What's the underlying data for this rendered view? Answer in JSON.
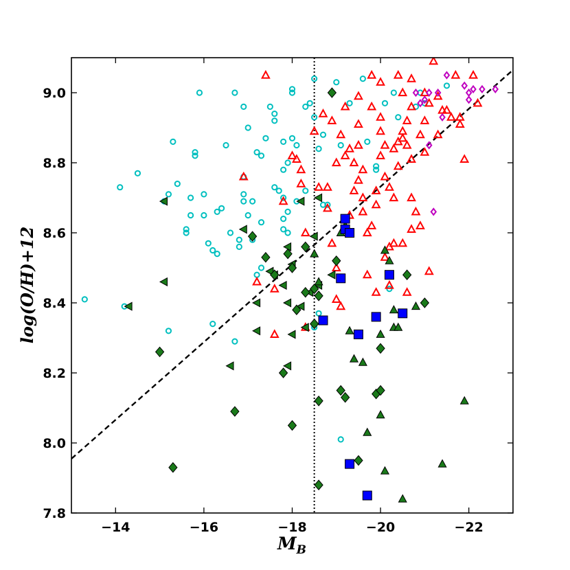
{
  "chart_data": {
    "type": "scatter",
    "title": "",
    "xlabel_main": "M",
    "xlabel_sub": "B",
    "ylabel": "log(O/H)+12",
    "xlim": [
      -13,
      -23
    ],
    "ylim": [
      7.8,
      9.1
    ],
    "x_ticks": [
      -14,
      -16,
      -18,
      -20,
      -22
    ],
    "x_tick_labels": [
      "−14",
      "−16",
      "−18",
      "−20",
      "−22"
    ],
    "y_ticks": [
      7.8,
      8.0,
      8.2,
      8.4,
      8.6,
      8.8,
      9.0
    ],
    "y_tick_labels": [
      "7.8",
      "8.0",
      "8.2",
      "8.4",
      "8.6",
      "8.8",
      "9.0"
    ],
    "grid": false,
    "reference_lines": [
      {
        "style": "dashed",
        "points": [
          [
            -13,
            7.955
          ],
          [
            -23,
            9.065
          ]
        ]
      },
      {
        "style": "dotted",
        "vertical_x": -18.5
      }
    ],
    "series": [
      {
        "marker": "circle-open",
        "color": "#00bfbf",
        "points": [
          [
            -13.3,
            8.41
          ],
          [
            -14.1,
            8.73
          ],
          [
            -14.2,
            8.39
          ],
          [
            -14.5,
            8.77
          ],
          [
            -15.1,
            8.69
          ],
          [
            -15.2,
            8.71
          ],
          [
            -15.3,
            8.86
          ],
          [
            -15.2,
            8.32
          ],
          [
            -15.4,
            8.74
          ],
          [
            -15.6,
            8.61
          ],
          [
            -15.6,
            8.6
          ],
          [
            -15.7,
            8.7
          ],
          [
            -15.7,
            8.65
          ],
          [
            -15.8,
            8.83
          ],
          [
            -15.8,
            8.82
          ],
          [
            -15.9,
            9.0
          ],
          [
            -16.0,
            8.71
          ],
          [
            -16.0,
            8.65
          ],
          [
            -16.1,
            8.57
          ],
          [
            -16.2,
            8.55
          ],
          [
            -16.3,
            8.54
          ],
          [
            -16.3,
            8.66
          ],
          [
            -16.4,
            8.67
          ],
          [
            -16.2,
            8.34
          ],
          [
            -16.5,
            8.85
          ],
          [
            -16.7,
            9.0
          ],
          [
            -16.6,
            8.6
          ],
          [
            -16.8,
            8.56
          ],
          [
            -16.8,
            8.58
          ],
          [
            -16.7,
            8.29
          ],
          [
            -16.9,
            8.71
          ],
          [
            -16.9,
            8.69
          ],
          [
            -16.9,
            8.96
          ],
          [
            -17.0,
            8.9
          ],
          [
            -16.9,
            8.76
          ],
          [
            -17.0,
            8.65
          ],
          [
            -17.1,
            8.58
          ],
          [
            -17.1,
            8.69
          ],
          [
            -17.2,
            8.83
          ],
          [
            -17.3,
            8.82
          ],
          [
            -17.3,
            8.5
          ],
          [
            -17.2,
            8.48
          ],
          [
            -17.3,
            8.63
          ],
          [
            -17.4,
            8.87
          ],
          [
            -17.5,
            8.96
          ],
          [
            -17.6,
            8.94
          ],
          [
            -17.6,
            8.92
          ],
          [
            -17.6,
            8.73
          ],
          [
            -17.7,
            8.72
          ],
          [
            -17.8,
            8.78
          ],
          [
            -17.8,
            8.86
          ],
          [
            -17.8,
            8.7
          ],
          [
            -17.8,
            8.64
          ],
          [
            -17.8,
            8.61
          ],
          [
            -17.9,
            8.6
          ],
          [
            -17.9,
            8.66
          ],
          [
            -17.9,
            8.8
          ],
          [
            -18.0,
            9.01
          ],
          [
            -18.0,
            9.0
          ],
          [
            -18.0,
            8.87
          ],
          [
            -18.1,
            8.85
          ],
          [
            -18.1,
            8.69
          ],
          [
            -18.3,
            8.72
          ],
          [
            -18.3,
            8.96
          ],
          [
            -18.4,
            8.97
          ],
          [
            -18.5,
            9.04
          ],
          [
            -18.5,
            8.93
          ],
          [
            -18.6,
            8.84
          ],
          [
            -18.7,
            8.88
          ],
          [
            -18.8,
            8.68
          ],
          [
            -18.6,
            8.37
          ],
          [
            -18.7,
            8.68
          ],
          [
            -19.0,
            9.03
          ],
          [
            -19.1,
            8.85
          ],
          [
            -19.3,
            8.97
          ],
          [
            -19.6,
            9.04
          ],
          [
            -19.7,
            8.86
          ],
          [
            -19.9,
            8.78
          ],
          [
            -19.9,
            8.79
          ],
          [
            -20.1,
            8.97
          ],
          [
            -20.2,
            8.44
          ],
          [
            -20.3,
            9.0
          ],
          [
            -20.8,
            8.96
          ],
          [
            -20.4,
            8.93
          ],
          [
            -21.0,
            8.97
          ],
          [
            -20.9,
            9.0
          ],
          [
            -21.5,
            9.02
          ],
          [
            -19.1,
            8.01
          ],
          [
            -18.5,
            8.33
          ]
        ]
      },
      {
        "marker": "triangle-up-open",
        "color": "#ff0000",
        "points": [
          [
            -17.4,
            9.05
          ],
          [
            -16.9,
            8.76
          ],
          [
            -17.2,
            8.46
          ],
          [
            -17.6,
            8.31
          ],
          [
            -17.6,
            8.44
          ],
          [
            -17.8,
            8.69
          ],
          [
            -18.0,
            8.82
          ],
          [
            -18.1,
            8.81
          ],
          [
            -18.2,
            8.78
          ],
          [
            -18.2,
            8.74
          ],
          [
            -18.3,
            8.6
          ],
          [
            -18.3,
            8.33
          ],
          [
            -18.5,
            8.89
          ],
          [
            -18.6,
            8.73
          ],
          [
            -18.7,
            8.94
          ],
          [
            -18.8,
            8.73
          ],
          [
            -18.8,
            8.67
          ],
          [
            -18.9,
            8.57
          ],
          [
            -19.0,
            8.5
          ],
          [
            -19.0,
            8.41
          ],
          [
            -19.1,
            8.39
          ],
          [
            -19.1,
            8.88
          ],
          [
            -19.2,
            8.82
          ],
          [
            -19.3,
            8.65
          ],
          [
            -19.4,
            8.72
          ],
          [
            -19.4,
            8.8
          ],
          [
            -19.5,
            8.75
          ],
          [
            -19.5,
            8.85
          ],
          [
            -19.5,
            8.91
          ],
          [
            -19.6,
            8.7
          ],
          [
            -19.6,
            8.66
          ],
          [
            -19.7,
            8.6
          ],
          [
            -19.8,
            8.62
          ],
          [
            -19.9,
            8.72
          ],
          [
            -19.9,
            8.68
          ],
          [
            -20.0,
            8.82
          ],
          [
            -20.0,
            8.89
          ],
          [
            -20.0,
            8.93
          ],
          [
            -20.1,
            8.85
          ],
          [
            -20.1,
            8.76
          ],
          [
            -20.2,
            8.73
          ],
          [
            -20.2,
            8.56
          ],
          [
            -20.2,
            8.45
          ],
          [
            -20.3,
            8.7
          ],
          [
            -20.3,
            8.84
          ],
          [
            -20.4,
            8.86
          ],
          [
            -20.4,
            8.79
          ],
          [
            -20.5,
            8.87
          ],
          [
            -20.5,
            8.89
          ],
          [
            -20.6,
            8.92
          ],
          [
            -20.6,
            8.85
          ],
          [
            -20.7,
            8.81
          ],
          [
            -20.7,
            8.7
          ],
          [
            -20.8,
            8.66
          ],
          [
            -20.9,
            8.62
          ],
          [
            -21.0,
            8.83
          ],
          [
            -21.0,
            8.92
          ],
          [
            -21.1,
            8.97
          ],
          [
            -21.2,
            9.09
          ],
          [
            -21.3,
            8.99
          ],
          [
            -21.4,
            8.95
          ],
          [
            -21.6,
            8.93
          ],
          [
            -21.7,
            9.05
          ],
          [
            -21.8,
            8.91
          ],
          [
            -21.9,
            8.81
          ],
          [
            -22.1,
            9.05
          ],
          [
            -22.2,
            8.97
          ],
          [
            -19.8,
            9.05
          ],
          [
            -20.0,
            9.03
          ],
          [
            -20.4,
            9.05
          ],
          [
            -20.5,
            9.0
          ],
          [
            -20.7,
            8.96
          ],
          [
            -20.9,
            8.88
          ],
          [
            -20.3,
            8.57
          ],
          [
            -20.5,
            8.57
          ],
          [
            -20.7,
            8.61
          ],
          [
            -20.1,
            8.53
          ],
          [
            -19.7,
            8.48
          ],
          [
            -19.9,
            8.43
          ],
          [
            -20.6,
            8.43
          ],
          [
            -21.1,
            8.49
          ],
          [
            -19.8,
            8.96
          ],
          [
            -19.5,
            8.99
          ],
          [
            -19.2,
            8.96
          ],
          [
            -19.0,
            8.8
          ],
          [
            -18.9,
            8.92
          ],
          [
            -19.3,
            8.84
          ],
          [
            -19.6,
            8.78
          ],
          [
            -20.7,
            9.04
          ],
          [
            -21.0,
            9.0
          ],
          [
            -21.5,
            8.95
          ],
          [
            -21.8,
            8.93
          ],
          [
            -21.3,
            8.88
          ]
        ]
      },
      {
        "marker": "diamond-open",
        "color": "#bf00bf",
        "points": [
          [
            -20.8,
            9.0
          ],
          [
            -21.0,
            8.98
          ],
          [
            -21.1,
            9.0
          ],
          [
            -21.4,
            8.93
          ],
          [
            -21.5,
            9.05
          ],
          [
            -21.9,
            9.02
          ],
          [
            -22.0,
            9.0
          ],
          [
            -22.1,
            9.01
          ],
          [
            -22.3,
            9.01
          ],
          [
            -22.6,
            9.01
          ],
          [
            -21.2,
            8.66
          ],
          [
            -21.3,
            9.0
          ],
          [
            -22.0,
            8.98
          ],
          [
            -21.1,
            8.85
          ],
          [
            -20.9,
            8.97
          ]
        ]
      },
      {
        "marker": "triangle-left",
        "color": "#1a7a1a",
        "points": [
          [
            -14.3,
            8.39
          ],
          [
            -15.1,
            8.46
          ],
          [
            -15.1,
            8.69
          ],
          [
            -16.6,
            8.22
          ],
          [
            -16.9,
            8.61
          ],
          [
            -17.2,
            8.4
          ],
          [
            -17.2,
            8.32
          ],
          [
            -17.5,
            8.49
          ],
          [
            -17.6,
            8.48
          ],
          [
            -17.8,
            8.45
          ],
          [
            -17.9,
            8.56
          ],
          [
            -17.9,
            8.4
          ],
          [
            -18.0,
            8.31
          ],
          [
            -18.0,
            8.51
          ],
          [
            -17.9,
            8.22
          ],
          [
            -18.2,
            8.39
          ],
          [
            -18.3,
            8.33
          ],
          [
            -18.4,
            8.43
          ],
          [
            -18.5,
            8.59
          ],
          [
            -18.2,
            8.69
          ],
          [
            -18.6,
            8.45
          ],
          [
            -18.7,
            8.35
          ],
          [
            -18.6,
            8.7
          ],
          [
            -18.9,
            8.48
          ]
        ]
      },
      {
        "marker": "triangle-up",
        "color": "#1a7a1a",
        "points": [
          [
            -18.5,
            8.54
          ],
          [
            -18.6,
            8.46
          ],
          [
            -19.1,
            8.6
          ],
          [
            -19.2,
            8.62
          ],
          [
            -19.4,
            8.24
          ],
          [
            -19.6,
            8.23
          ],
          [
            -19.7,
            8.03
          ],
          [
            -20.0,
            8.08
          ],
          [
            -20.0,
            8.31
          ],
          [
            -20.1,
            7.92
          ],
          [
            -20.1,
            8.55
          ],
          [
            -20.2,
            8.52
          ],
          [
            -20.3,
            8.33
          ],
          [
            -20.3,
            8.38
          ],
          [
            -20.4,
            8.33
          ],
          [
            -20.5,
            8.37
          ],
          [
            -20.5,
            7.84
          ],
          [
            -21.4,
            7.94
          ],
          [
            -21.9,
            8.12
          ],
          [
            -19.3,
            8.32
          ],
          [
            -20.8,
            8.39
          ]
        ]
      },
      {
        "marker": "diamond",
        "color": "#1a7a1a",
        "points": [
          [
            -15.0,
            8.26
          ],
          [
            -15.3,
            7.93
          ],
          [
            -16.7,
            8.09
          ],
          [
            -17.1,
            8.59
          ],
          [
            -17.4,
            8.53
          ],
          [
            -17.6,
            8.48
          ],
          [
            -17.8,
            8.2
          ],
          [
            -17.9,
            8.54
          ],
          [
            -18.0,
            8.5
          ],
          [
            -18.0,
            8.05
          ],
          [
            -18.1,
            8.38
          ],
          [
            -18.3,
            8.43
          ],
          [
            -18.3,
            8.56
          ],
          [
            -18.5,
            8.44
          ],
          [
            -18.5,
            8.34
          ],
          [
            -18.6,
            8.42
          ],
          [
            -18.6,
            7.88
          ],
          [
            -18.6,
            8.12
          ],
          [
            -18.9,
            9.0
          ],
          [
            -19.0,
            8.52
          ],
          [
            -19.1,
            8.15
          ],
          [
            -19.2,
            8.13
          ],
          [
            -19.5,
            7.95
          ],
          [
            -19.9,
            8.14
          ],
          [
            -20.0,
            8.15
          ],
          [
            -20.0,
            8.27
          ],
          [
            -20.6,
            8.48
          ],
          [
            -21.0,
            8.4
          ]
        ]
      },
      {
        "marker": "square",
        "color": "#0000ff",
        "points": [
          [
            -18.7,
            8.35
          ],
          [
            -19.1,
            8.47
          ],
          [
            -19.2,
            8.64
          ],
          [
            -19.2,
            8.61
          ],
          [
            -19.3,
            8.6
          ],
          [
            -19.3,
            7.94
          ],
          [
            -19.5,
            8.31
          ],
          [
            -19.7,
            7.85
          ],
          [
            -19.9,
            8.36
          ],
          [
            -20.2,
            8.48
          ],
          [
            -20.5,
            8.37
          ]
        ]
      }
    ]
  }
}
